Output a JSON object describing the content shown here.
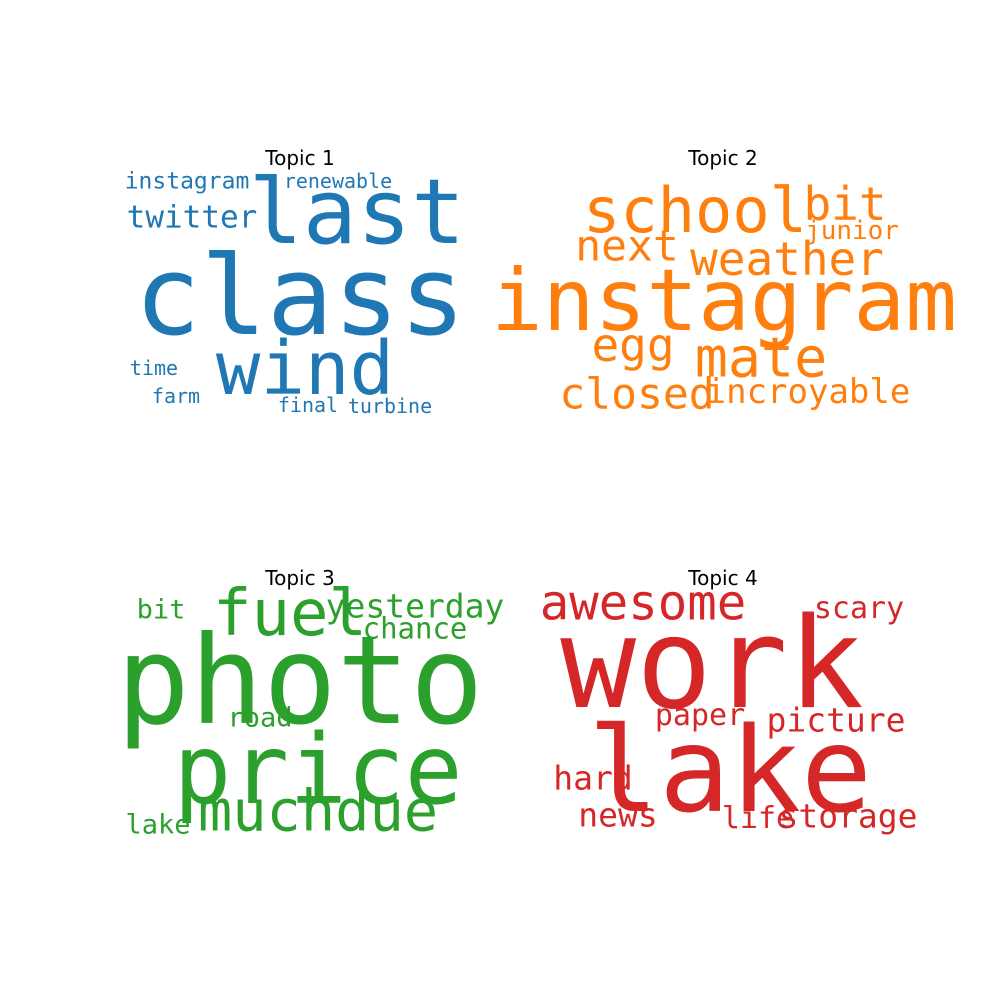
{
  "chart_data": [
    {
      "type": "wordcloud",
      "title": "Topic 1",
      "color": "#1f77b4",
      "words": [
        {
          "text": "class",
          "weight": 100
        },
        {
          "text": "last",
          "weight": 82
        },
        {
          "text": "wind",
          "weight": 68
        },
        {
          "text": "twitter",
          "weight": 30
        },
        {
          "text": "instagram",
          "weight": 22
        },
        {
          "text": "renewable",
          "weight": 19
        },
        {
          "text": "time",
          "weight": 19
        },
        {
          "text": "farm",
          "weight": 19
        },
        {
          "text": "final",
          "weight": 19
        },
        {
          "text": "turbine",
          "weight": 19
        }
      ]
    },
    {
      "type": "wordcloud",
      "title": "Topic 2",
      "color": "#ff7f0e",
      "words": [
        {
          "text": "instagram",
          "weight": 100
        },
        {
          "text": "school",
          "weight": 80
        },
        {
          "text": "mate",
          "weight": 72
        },
        {
          "text": "weather",
          "weight": 60
        },
        {
          "text": "bit",
          "weight": 60
        },
        {
          "text": "egg",
          "weight": 60
        },
        {
          "text": "closed",
          "weight": 57
        },
        {
          "text": "next",
          "weight": 57
        },
        {
          "text": "incroyable",
          "weight": 45
        },
        {
          "text": "junior",
          "weight": 34
        }
      ]
    },
    {
      "type": "wordcloud",
      "title": "Topic 3",
      "color": "#2ca02c",
      "words": [
        {
          "text": "photo",
          "weight": 100
        },
        {
          "text": "price",
          "weight": 78
        },
        {
          "text": "fuel",
          "weight": 52
        },
        {
          "text": "muchdue",
          "weight": 47
        },
        {
          "text": "yesterday",
          "weight": 27
        },
        {
          "text": "chance",
          "weight": 24
        },
        {
          "text": "bit",
          "weight": 22
        },
        {
          "text": "road",
          "weight": 22
        },
        {
          "text": "lake",
          "weight": 22
        }
      ]
    },
    {
      "type": "wordcloud",
      "title": "Topic 4",
      "color": "#d62728",
      "words": [
        {
          "text": "work",
          "weight": 100
        },
        {
          "text": "lake",
          "weight": 93
        },
        {
          "text": "awesome",
          "weight": 40
        },
        {
          "text": "picture",
          "weight": 27
        },
        {
          "text": "hard",
          "weight": 27
        },
        {
          "text": "news",
          "weight": 27
        },
        {
          "text": "storage",
          "weight": 27
        },
        {
          "text": "scary",
          "weight": 24
        },
        {
          "text": "paper",
          "weight": 24
        },
        {
          "text": "life",
          "weight": 24
        }
      ]
    }
  ]
}
